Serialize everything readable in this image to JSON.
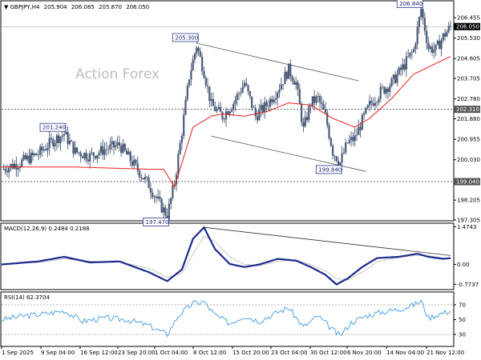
{
  "chart_data": [
    {
      "type": "candlestick",
      "title": "GBPJPY,H4",
      "ohlc": [
        "205.904",
        "206.085",
        "205.870",
        "206.050"
      ],
      "watermark": "Action Forex",
      "ylim": [
        197.305,
        207.18
      ],
      "y_ticks": [
        "206.455",
        "205.530",
        "204.605",
        "203.705",
        "202.780",
        "201.880",
        "200.955",
        "200.030",
        "199.040",
        "198.205",
        "197.305"
      ],
      "current_price": "206.050",
      "hline_levels": [
        "202.310",
        "199.040"
      ],
      "annotations": [
        "206.840",
        "205.300",
        "201.240",
        "197.470",
        "199.840"
      ],
      "x_ticks": [
        "1 Sep 2025",
        "9 Sep 04:00",
        "16 Sep 12:00",
        "23 Sep 20:00",
        "1 Oct 04:00",
        "8 Oct 12:00",
        "15 Oct 20:00",
        "23 Oct 04:00",
        "30 Oct 12:00",
        "6 Nov 20:00",
        "14 Nov 04:00",
        "21 Nov 12:00"
      ],
      "close_path": [
        [
          0,
          199.6
        ],
        [
          5,
          199.9
        ],
        [
          10,
          200.3
        ],
        [
          14,
          200.9
        ],
        [
          17,
          201.2
        ],
        [
          20,
          200.4
        ],
        [
          24,
          200.2
        ],
        [
          28,
          200.5
        ],
        [
          32,
          200.7
        ],
        [
          36,
          199.8
        ],
        [
          40,
          198.9
        ],
        [
          43,
          198.0
        ],
        [
          45,
          197.5
        ],
        [
          47,
          199.0
        ],
        [
          49,
          201.3
        ],
        [
          51,
          203.8
        ],
        [
          53,
          205.2
        ],
        [
          55,
          204.0
        ],
        [
          57,
          202.5
        ],
        [
          60,
          202.0
        ],
        [
          63,
          202.6
        ],
        [
          66,
          203.5
        ],
        [
          69,
          202.0
        ],
        [
          72,
          202.5
        ],
        [
          75,
          203.2
        ],
        [
          78,
          204.1
        ],
        [
          80,
          203.5
        ],
        [
          82,
          201.4
        ],
        [
          84,
          202.6
        ],
        [
          86,
          202.8
        ],
        [
          88,
          202.0
        ],
        [
          90,
          200.4
        ],
        [
          92,
          199.9
        ],
        [
          94,
          200.8
        ],
        [
          96,
          201.0
        ],
        [
          98,
          201.8
        ],
        [
          100,
          202.5
        ],
        [
          103,
          203.1
        ],
        [
          106,
          203.5
        ],
        [
          109,
          204.2
        ],
        [
          112,
          205.0
        ],
        [
          114,
          206.84
        ],
        [
          116,
          205.1
        ],
        [
          118,
          205.0
        ],
        [
          120,
          205.6
        ],
        [
          122,
          206.05
        ]
      ],
      "moving_average": [
        [
          0,
          199.7
        ],
        [
          20,
          199.7
        ],
        [
          40,
          199.6
        ],
        [
          44,
          199.6
        ],
        [
          47,
          198.8
        ],
        [
          52,
          201.5
        ],
        [
          57,
          202.0
        ],
        [
          60,
          202.1
        ],
        [
          66,
          202.0
        ],
        [
          72,
          202.2
        ],
        [
          78,
          202.6
        ],
        [
          84,
          202.5
        ],
        [
          90,
          201.9
        ],
        [
          96,
          201.5
        ],
        [
          100,
          201.9
        ],
        [
          106,
          202.8
        ],
        [
          112,
          203.9
        ],
        [
          122,
          204.7
        ]
      ],
      "channel_upper": [
        [
          53,
          205.3
        ],
        [
          97,
          203.6
        ]
      ],
      "channel_lower": [
        [
          57,
          201.1
        ],
        [
          99,
          199.5
        ]
      ]
    },
    {
      "type": "line",
      "title": "MACD(12,26,9) 0.2484 0.2188",
      "ylim": [
        -0.95,
        1.55
      ],
      "y_ticks": [
        "1.4743",
        "0.00",
        "-0.7737"
      ],
      "macd": [
        [
          0,
          0.0
        ],
        [
          10,
          0.12
        ],
        [
          17,
          0.3
        ],
        [
          24,
          0.08
        ],
        [
          32,
          0.12
        ],
        [
          40,
          -0.3
        ],
        [
          45,
          -0.65
        ],
        [
          49,
          -0.2
        ],
        [
          52,
          1.0
        ],
        [
          55,
          1.45
        ],
        [
          58,
          0.6
        ],
        [
          62,
          0.02
        ],
        [
          66,
          -0.1
        ],
        [
          70,
          0.0
        ],
        [
          75,
          0.22
        ],
        [
          80,
          0.15
        ],
        [
          84,
          -0.1
        ],
        [
          88,
          -0.4
        ],
        [
          91,
          -0.78
        ],
        [
          94,
          -0.55
        ],
        [
          98,
          -0.1
        ],
        [
          102,
          0.25
        ],
        [
          108,
          0.3
        ],
        [
          113,
          0.42
        ],
        [
          116,
          0.3
        ],
        [
          120,
          0.22
        ],
        [
          122,
          0.25
        ]
      ],
      "signal": [
        [
          0,
          0.02
        ],
        [
          10,
          0.08
        ],
        [
          17,
          0.22
        ],
        [
          24,
          0.12
        ],
        [
          32,
          0.1
        ],
        [
          40,
          -0.15
        ],
        [
          45,
          -0.5
        ],
        [
          49,
          -0.35
        ],
        [
          52,
          0.4
        ],
        [
          55,
          1.1
        ],
        [
          58,
          0.9
        ],
        [
          62,
          0.3
        ],
        [
          66,
          0.0
        ],
        [
          70,
          -0.05
        ],
        [
          75,
          0.12
        ],
        [
          80,
          0.18
        ],
        [
          84,
          0.0
        ],
        [
          88,
          -0.25
        ],
        [
          91,
          -0.55
        ],
        [
          94,
          -0.6
        ],
        [
          98,
          -0.3
        ],
        [
          102,
          0.1
        ],
        [
          108,
          0.28
        ],
        [
          113,
          0.35
        ],
        [
          116,
          0.34
        ],
        [
          120,
          0.25
        ],
        [
          122,
          0.22
        ]
      ],
      "trendline": [
        [
          55,
          1.45
        ],
        [
          122,
          0.35
        ]
      ]
    },
    {
      "type": "line",
      "title": "RSI(14) 62.3704",
      "ylim": [
        15,
        85
      ],
      "y_ticks": [
        "70",
        "50",
        "30"
      ],
      "values": [
        [
          0,
          50
        ],
        [
          6,
          55
        ],
        [
          12,
          58
        ],
        [
          17,
          62
        ],
        [
          22,
          48
        ],
        [
          28,
          52
        ],
        [
          34,
          50
        ],
        [
          40,
          42
        ],
        [
          45,
          30
        ],
        [
          48,
          55
        ],
        [
          52,
          72
        ],
        [
          55,
          74
        ],
        [
          58,
          56
        ],
        [
          62,
          45
        ],
        [
          66,
          55
        ],
        [
          70,
          48
        ],
        [
          75,
          60
        ],
        [
          78,
          66
        ],
        [
          82,
          40
        ],
        [
          86,
          55
        ],
        [
          90,
          36
        ],
        [
          92,
          28
        ],
        [
          95,
          46
        ],
        [
          99,
          55
        ],
        [
          103,
          60
        ],
        [
          108,
          64
        ],
        [
          112,
          70
        ],
        [
          114,
          75
        ],
        [
          116,
          52
        ],
        [
          118,
          56
        ],
        [
          122,
          62
        ]
      ]
    }
  ],
  "colors": {
    "candle": "#4a5a78",
    "ma": "#e8211b",
    "macd": "#1c2a8c",
    "signal": "#c7c7c7",
    "rsi": "#3d9be8",
    "channel": "#555555",
    "tag_border": "#2a3b8f"
  }
}
